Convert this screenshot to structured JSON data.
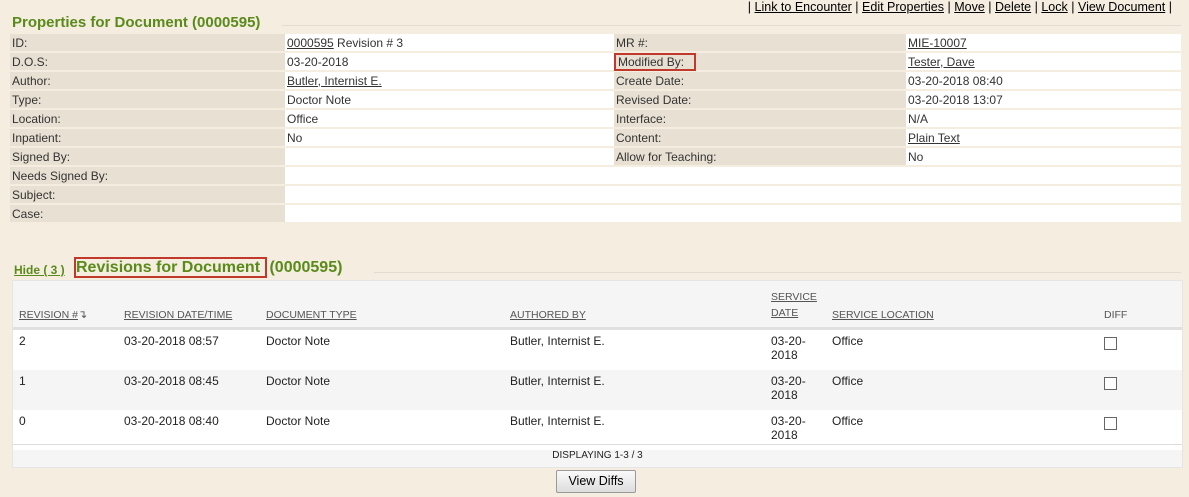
{
  "top_links": [
    "Link to Encounter",
    "Edit Properties",
    "Move",
    "Delete",
    "Lock",
    "View Document"
  ],
  "properties": {
    "title": "Properties for Document (0000595)",
    "rows": [
      {
        "label": "ID:",
        "value_link": "0000595",
        "value": " Revision # 3",
        "label2": "MR #:",
        "value2": "MIE-10007",
        "value2_link": true
      },
      {
        "label": "D.O.S:",
        "value": "03-20-2018",
        "label2": "Modified By:",
        "value2": "Tester, Dave",
        "value2_link": true
      },
      {
        "label": "Author:",
        "value_link": "Butler, Internist E.",
        "label2": "Create Date:",
        "value2": "03-20-2018 08:40"
      },
      {
        "label": "Type:",
        "value": "Doctor Note",
        "label2": "Revised Date:",
        "value2": "03-20-2018 13:07"
      },
      {
        "label": "Location:",
        "value": "Office",
        "label2": "Interface:",
        "value2": "N/A"
      },
      {
        "label": "Inpatient:",
        "value": "No",
        "label2": "Content:",
        "value2": "Plain Text",
        "value2_link": true
      },
      {
        "label": "Signed By:",
        "value": "",
        "label2": "Allow for Teaching:",
        "value2": "No"
      },
      {
        "label": "Needs Signed By:",
        "value": ""
      },
      {
        "label": "Subject:",
        "value": ""
      },
      {
        "label": "Case:",
        "value": ""
      }
    ]
  },
  "revisions": {
    "hide_link": "Hide ( 3 )",
    "title": "Revisions for Document",
    "title_id": " (0000595)",
    "columns": [
      "REVISION #",
      "REVISION DATE/TIME",
      "DOCUMENT TYPE",
      "AUTHORED BY",
      "SERVICE DATE",
      "SERVICE LOCATION",
      "DIFF"
    ],
    "sort_icon": "sort-down-arrow",
    "rows": [
      {
        "rev": "2",
        "date": "03-20-2018 08:57",
        "type": "Doctor Note",
        "author": "Butler, Internist E.",
        "service_date": "03-20-2018",
        "location": "Office"
      },
      {
        "rev": "1",
        "date": "03-20-2018 08:45",
        "type": "Doctor Note",
        "author": "Butler, Internist E.",
        "service_date": "03-20-2018",
        "location": "Office"
      },
      {
        "rev": "0",
        "date": "03-20-2018 08:40",
        "type": "Doctor Note",
        "author": "Butler, Internist E.",
        "service_date": "03-20-2018",
        "location": "Office"
      }
    ],
    "footer": "DISPLAYING 1-3 / 3",
    "view_diffs": "View Diffs"
  }
}
